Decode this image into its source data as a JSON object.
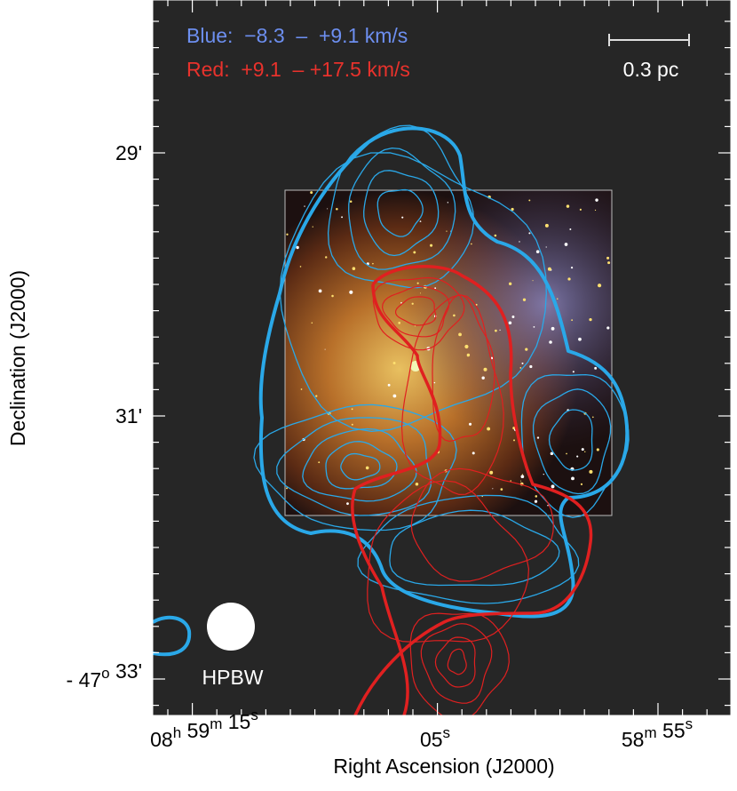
{
  "legend": {
    "blue": "Blue:  −8.3  –  +9.1 km/s",
    "red": "Red:  +9.1  – +17.5 km/s"
  },
  "scale_bar": {
    "label": "0.3 pc"
  },
  "beam": {
    "label": "HPBW"
  },
  "axes": {
    "x_title": "Right Ascension (J2000)",
    "y_title": "Declination (J2000)",
    "x_ticks": [
      [
        {
          "t": "08",
          "s": "h"
        },
        {
          "t": " 59",
          "s": "m"
        },
        {
          "t": " 15",
          "s": "s"
        }
      ],
      [
        {
          "t": "05",
          "s": "s"
        }
      ],
      [
        {
          "t": "58",
          "s": "m"
        },
        {
          "t": " 55",
          "s": "s"
        }
      ]
    ],
    "y_ticks": [
      [
        {
          "t": "29'",
          "s": ""
        }
      ],
      [
        {
          "t": "31'",
          "s": ""
        }
      ],
      [
        {
          "t": "- 47",
          "s": "o"
        },
        {
          "t": " 33'",
          "s": ""
        }
      ]
    ]
  }
}
